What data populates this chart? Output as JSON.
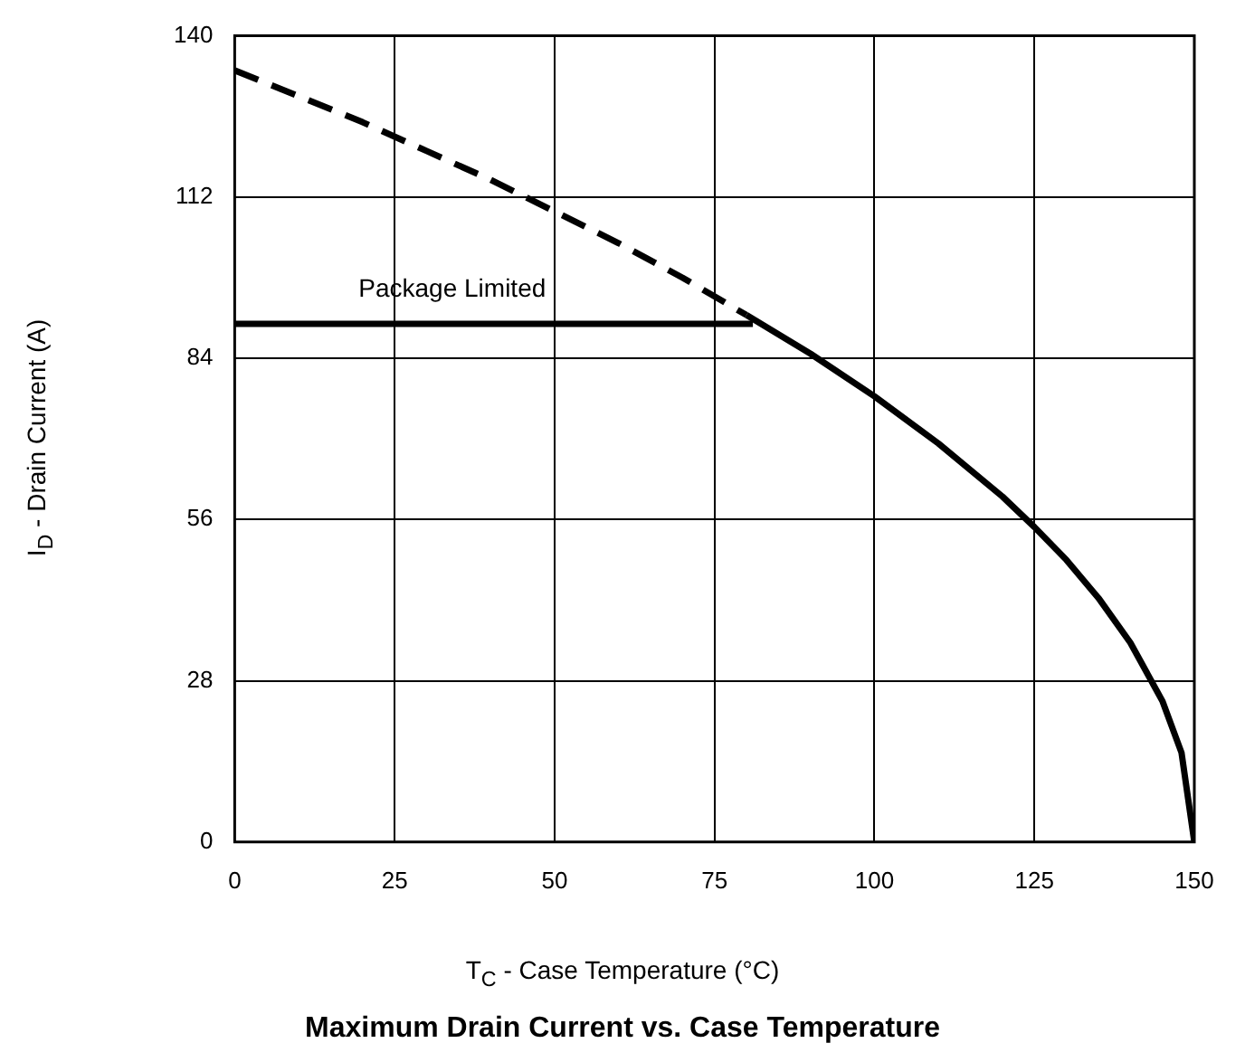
{
  "chart_data": {
    "type": "line",
    "title": "Maximum Drain Current vs. Case Temperature",
    "xlabel": "T$_{C}$ - Case Temperature (°C)",
    "ylabel": "I$_{D}$ - Drain Current (A)",
    "xlim": [
      0,
      150
    ],
    "xticks": [
      0,
      25,
      50,
      75,
      100,
      125,
      150
    ],
    "ylim": [
      0,
      140
    ],
    "yticks": [
      0,
      28,
      56,
      84,
      112,
      140
    ],
    "grid": true,
    "legend": false,
    "marker": "none",
    "annotations": [
      {
        "text": "Package Limited",
        "x": 34,
        "y": 90
      }
    ],
    "series": [
      {
        "color": "#000000",
        "line_style": "dashed",
        "x": [
          0,
          10,
          20,
          30,
          40,
          50,
          60,
          70,
          80
        ],
        "values": [
          134,
          129.5,
          125,
          120,
          115,
          109.5,
          104,
          98,
          91.5
        ]
      },
      {
        "color": "#000000",
        "line_style": "solid",
        "x": [
          80,
          90,
          100,
          110,
          120,
          125,
          130,
          135,
          140,
          145,
          148,
          150
        ],
        "values": [
          91.5,
          84.8,
          77.4,
          69.2,
          60,
          54.7,
          49,
          42.4,
          34.6,
          24.5,
          15.5,
          0
        ]
      },
      {
        "color": "#000000",
        "line_style": "solid",
        "x": [
          0,
          81
        ],
        "values": [
          90,
          90
        ]
      }
    ]
  }
}
